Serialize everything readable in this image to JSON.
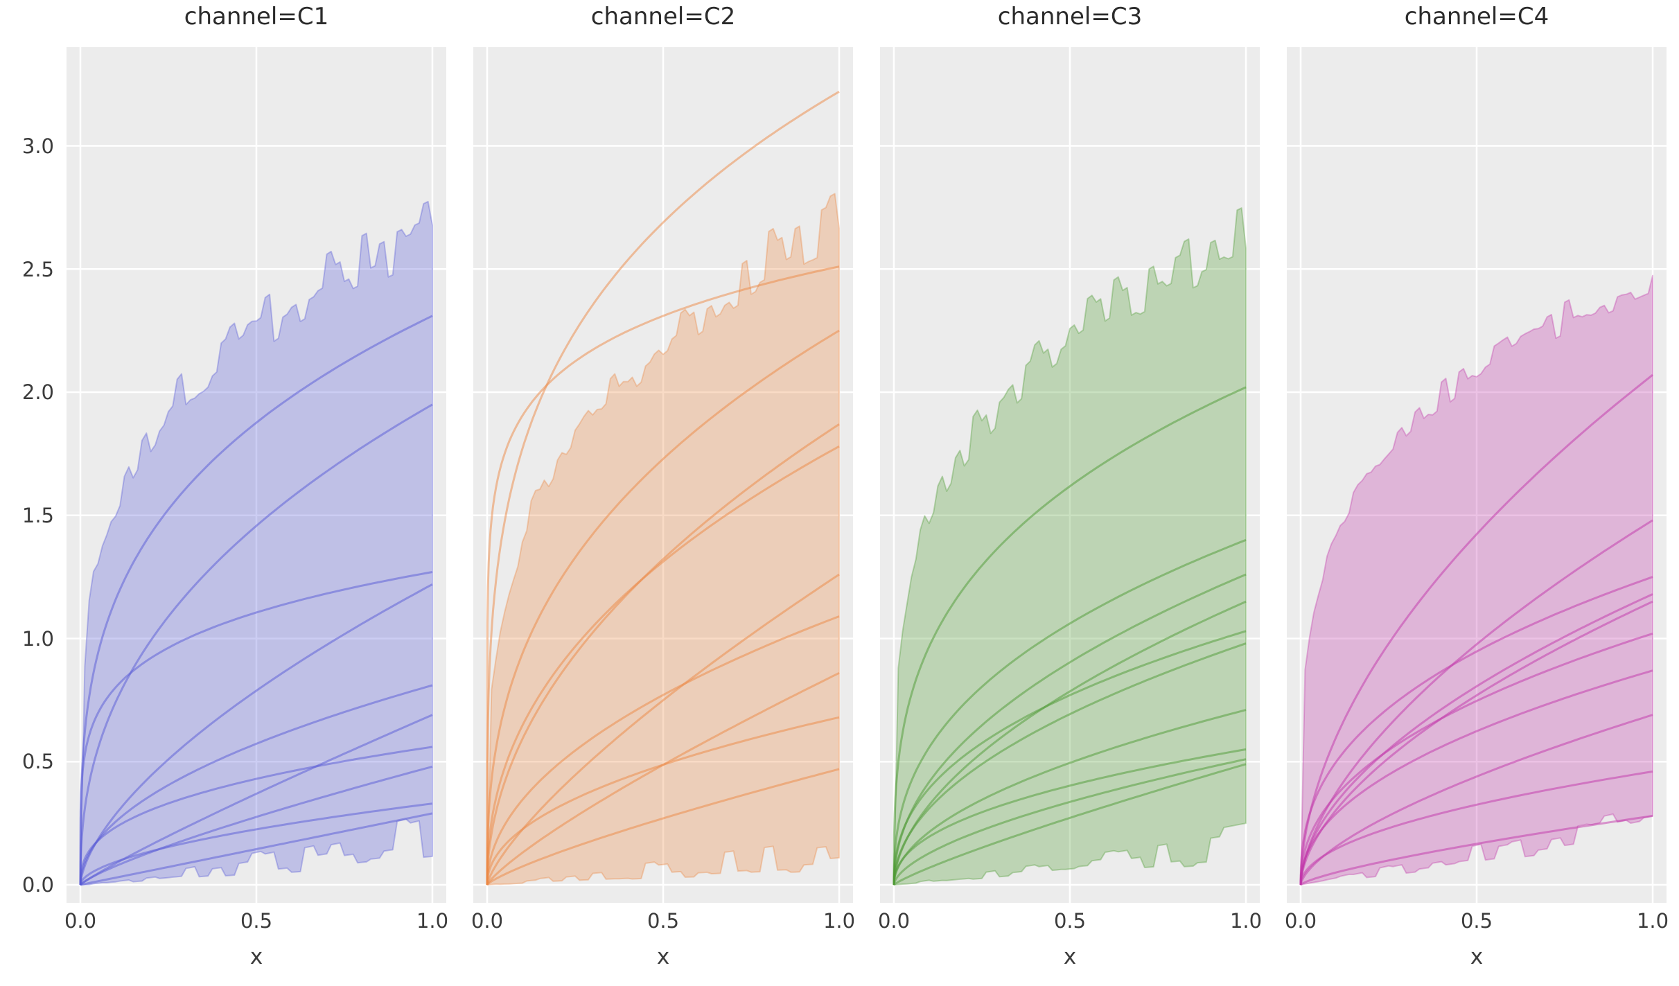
{
  "figure": {
    "bg": "#ffffff",
    "panel_bg": "#ececec",
    "grid_color": "#ffffff",
    "title_color": "#2b2b2b",
    "tick_color": "#3b3b3b"
  },
  "chart_data": {
    "type": "line",
    "facet_variable": "channel",
    "unit_model": "y = a * x^b, x in [0,1]; shaded region = jagged min/max envelope of noisy unit samples",
    "x_label": "x",
    "x_ticks": [
      "0.0",
      "0.5",
      "1.0"
    ],
    "y_ticks": [
      "0.0",
      "0.5",
      "1.0",
      "1.5",
      "2.0",
      "2.5",
      "3.0"
    ],
    "x_tick_values": [
      0,
      0.5,
      1.0
    ],
    "y_tick_values": [
      0,
      0.5,
      1.0,
      1.5,
      2.0,
      2.5,
      3.0
    ],
    "xlim": [
      -0.039,
      1.039
    ],
    "ylim": [
      -0.073,
      3.4
    ],
    "grid": true,
    "legend": false,
    "panels": [
      {
        "title": "channel=C1",
        "channel": "C1",
        "color": {
          "line": "#5759d6",
          "fill_composite": "#bdbfea"
        },
        "band": {
          "top": {
            "a": 2.67,
            "b": 0.24
          },
          "bottom": {
            "a": 0.2,
            "b": 1.2
          },
          "noise_top": 0.05,
          "noise_bottom": 0.55,
          "seed": 7
        },
        "units": [
          {
            "a": 2.31,
            "b": 0.3
          },
          {
            "a": 1.95,
            "b": 0.42
          },
          {
            "a": 1.27,
            "b": 0.2
          },
          {
            "a": 1.22,
            "b": 0.63
          },
          {
            "a": 0.81,
            "b": 0.5
          },
          {
            "a": 0.69,
            "b": 0.9
          },
          {
            "a": 0.56,
            "b": 0.38
          },
          {
            "a": 0.48,
            "b": 0.8
          },
          {
            "a": 0.33,
            "b": 0.55
          },
          {
            "a": 0.29,
            "b": 1.0
          }
        ]
      },
      {
        "title": "channel=C2",
        "channel": "C2",
        "color": {
          "line": "#ec8843",
          "fill_composite": "#f2d5bc"
        },
        "band": {
          "top": {
            "a": 2.69,
            "b": 0.28
          },
          "bottom": {
            "a": 0.13,
            "b": 1.0
          },
          "noise_top": 0.05,
          "noise_bottom": 0.6,
          "seed": 13
        },
        "units": [
          {
            "a": 3.22,
            "b": 0.26
          },
          {
            "a": 2.51,
            "b": 0.12
          },
          {
            "a": 2.25,
            "b": 0.38
          },
          {
            "a": 1.87,
            "b": 0.5
          },
          {
            "a": 1.78,
            "b": 0.44
          },
          {
            "a": 1.26,
            "b": 0.75
          },
          {
            "a": 1.09,
            "b": 0.5
          },
          {
            "a": 0.86,
            "b": 0.82
          },
          {
            "a": 0.68,
            "b": 0.48
          },
          {
            "a": 0.47,
            "b": 0.8
          }
        ]
      },
      {
        "title": "channel=C3",
        "channel": "C3",
        "color": {
          "line": "#4e9a33",
          "fill_composite": "#c2d6b5"
        },
        "band": {
          "top": {
            "a": 2.65,
            "b": 0.25
          },
          "bottom": {
            "a": 0.17,
            "b": 1.1
          },
          "noise_top": 0.05,
          "noise_bottom": 0.5,
          "seed": 21
        },
        "units": [
          {
            "a": 2.02,
            "b": 0.32
          },
          {
            "a": 1.4,
            "b": 0.4
          },
          {
            "a": 1.26,
            "b": 0.48
          },
          {
            "a": 1.15,
            "b": 0.55
          },
          {
            "a": 1.03,
            "b": 0.42
          },
          {
            "a": 0.98,
            "b": 0.5
          },
          {
            "a": 0.71,
            "b": 0.52
          },
          {
            "a": 0.55,
            "b": 0.45
          },
          {
            "a": 0.51,
            "b": 0.6
          },
          {
            "a": 0.49,
            "b": 0.85
          }
        ]
      },
      {
        "title": "channel=C4",
        "channel": "C4",
        "color": {
          "line": "#c136aa",
          "fill_composite": "#e7bade"
        },
        "band": {
          "top": {
            "a": 2.47,
            "b": 0.24
          },
          "bottom": {
            "a": 0.24,
            "b": 1.0
          },
          "noise_top": 0.03,
          "noise_bottom": 0.35,
          "seed": 5
        },
        "units": [
          {
            "a": 2.07,
            "b": 0.54
          },
          {
            "a": 1.48,
            "b": 0.6
          },
          {
            "a": 1.25,
            "b": 0.4
          },
          {
            "a": 1.18,
            "b": 0.55
          },
          {
            "a": 1.15,
            "b": 0.58
          },
          {
            "a": 1.02,
            "b": 0.45
          },
          {
            "a": 0.87,
            "b": 0.48
          },
          {
            "a": 0.69,
            "b": 0.65
          },
          {
            "a": 0.46,
            "b": 0.5
          },
          {
            "a": 0.28,
            "b": 0.75
          }
        ]
      }
    ]
  }
}
